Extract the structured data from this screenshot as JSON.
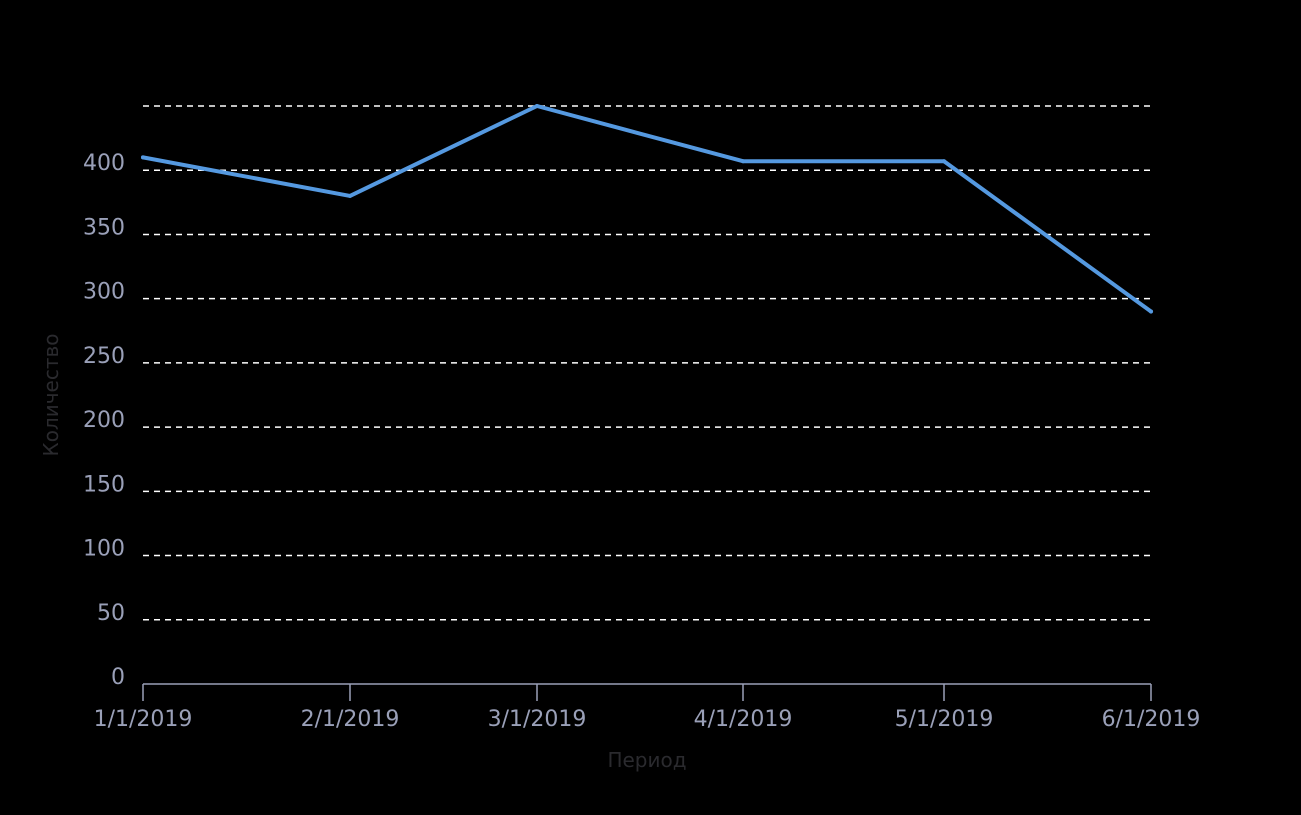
{
  "chart_data": {
    "type": "line",
    "title": "",
    "xlabel": "Период",
    "ylabel": "Количество",
    "categories": [
      "1/1/2019",
      "2/1/2019",
      "3/1/2019",
      "4/1/2019",
      "5/1/2019",
      "6/1/2019"
    ],
    "series": [
      {
        "values": [
          410,
          380,
          450,
          407,
          407,
          290
        ]
      }
    ],
    "ylim": [
      0,
      450
    ],
    "yticks": [
      0,
      50,
      100,
      150,
      200,
      250,
      300,
      350,
      400,
      450
    ],
    "ytick_labels": [
      "0",
      "50",
      "100",
      "150",
      "200",
      "250",
      "300",
      "350",
      "400",
      ""
    ],
    "grid": "horizontal-dashed",
    "colors": {
      "background": "#000000",
      "line": "#5599e0",
      "grid": "#ffffff",
      "tick_label": "#9aa0b8",
      "axis": "#9aa0b8",
      "axis_title": "#2a2a2e"
    }
  }
}
